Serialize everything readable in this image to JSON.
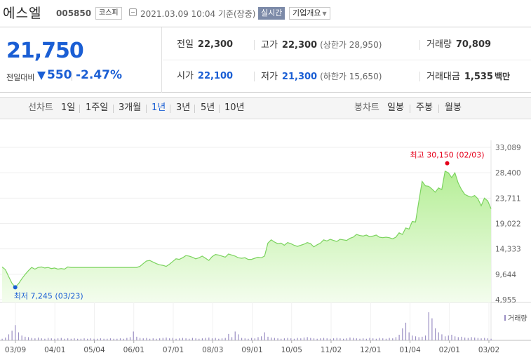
{
  "stock": {
    "name": "에스엘",
    "code": "005850",
    "market": "코스피",
    "datetime": "2021.03.09 10:04 기준(장중)",
    "realtime_label": "실시간",
    "company_label": "기업개요",
    "price": "21,750",
    "change_label": "전일대비",
    "change": "550",
    "change_pct": "-2.47%"
  },
  "quote": {
    "prev_close_label": "전일",
    "prev_close": "22,300",
    "high_label": "고가",
    "high": "22,300",
    "upper_limit": "(상한가 28,950)",
    "volume_label": "거래량",
    "volume": "70,809",
    "open_label": "시가",
    "open": "22,100",
    "low_label": "저가",
    "low": "21,300",
    "lower_limit": "(하한가 15,650)",
    "amount_label": "거래대금",
    "amount": "1,535",
    "amount_unit": "백만"
  },
  "tabs": {
    "line_label": "선차트",
    "line_periods": [
      "1일",
      "1주일",
      "3개월",
      "1년",
      "3년",
      "5년",
      "10년"
    ],
    "active": "1년",
    "candle_label": "봉차트",
    "candle_periods": [
      "일봉",
      "주봉",
      "월봉"
    ]
  },
  "colors": {
    "up": "#e5001b",
    "down": "#1a5ed4",
    "line": "#7bd35e",
    "fill_top": "#b5ee96",
    "fill_bottom": "#f4fdee"
  },
  "chart_data": {
    "type": "area",
    "y_ticks": [
      "33,089",
      "28,400",
      "23,711",
      "19,022",
      "14,333",
      "9,644",
      "4,955"
    ],
    "ylim": [
      4955,
      33089
    ],
    "x_ticks": [
      "03/09",
      "04/01",
      "05/04",
      "06/01",
      "07/01",
      "08/03",
      "09/01",
      "10/05",
      "11/02",
      "12/01",
      "01/04",
      "02/01",
      "03/02"
    ],
    "high_label": "최고 30,150 (02/03)",
    "high_value": 30150,
    "low_label": "최저 7,245 (03/23)",
    "low_value": 7245,
    "volume_label": "거래량",
    "prices": [
      11000,
      10500,
      9200,
      8000,
      7245,
      7900,
      8800,
      9600,
      10300,
      10900,
      10600,
      10900,
      11000,
      10800,
      10900,
      10700,
      10800,
      10600,
      10700,
      10600,
      11000,
      10900,
      10900,
      10900,
      10900,
      10900,
      10900,
      10900,
      10900,
      10900,
      10900,
      10900,
      10900,
      10900,
      10900,
      10900,
      10900,
      10900,
      10900,
      10900,
      10900,
      10900,
      11100,
      11600,
      12100,
      12200,
      11900,
      11600,
      11400,
      11300,
      11100,
      11500,
      12000,
      12500,
      12400,
      12700,
      13100,
      13000,
      12800,
      12500,
      12700,
      13000,
      12600,
      12200,
      12900,
      13300,
      13200,
      13000,
      12800,
      13400,
      13200,
      13000,
      12700,
      12600,
      12700,
      12400,
      12400,
      12600,
      12800,
      12700,
      13000,
      15400,
      16000,
      15600,
      15300,
      15400,
      15000,
      15500,
      15300,
      15000,
      14800,
      15000,
      15200,
      15500,
      15300,
      14700,
      15100,
      15400,
      16000,
      15800,
      16100,
      15900,
      15700,
      16100,
      16000,
      15900,
      16300,
      16500,
      17000,
      16800,
      16700,
      16900,
      16600,
      16700,
      16900,
      16500,
      16400,
      16500,
      16400,
      16200,
      16500,
      17300,
      17000,
      18200,
      18000,
      19400,
      19300,
      23100,
      26800,
      26000,
      25900,
      25400,
      24800,
      25600,
      25300,
      28700,
      28400,
      27500,
      28400,
      26500,
      25300,
      24400,
      24100,
      23900,
      24200,
      23600,
      22300,
      23700,
      23200,
      21750
    ],
    "volumes": [
      4,
      7,
      15,
      24,
      38,
      20,
      12,
      9,
      8,
      6,
      5,
      7,
      5,
      4,
      6,
      5,
      4,
      5,
      6,
      4,
      5,
      4,
      5,
      4,
      4,
      5,
      4,
      5,
      4,
      4,
      5,
      4,
      4,
      5,
      4,
      4,
      5,
      4,
      6,
      8,
      22,
      9,
      6,
      5,
      6,
      4,
      5,
      4,
      5,
      6,
      7,
      5,
      6,
      4,
      5,
      6,
      5,
      4,
      6,
      5,
      4,
      5,
      6,
      7,
      5,
      6,
      4,
      5,
      6,
      16,
      8,
      22,
      15,
      6,
      5,
      4,
      6,
      5,
      8,
      10,
      20,
      9,
      7,
      6,
      5,
      4,
      5,
      6,
      5,
      4,
      6,
      5,
      7,
      8,
      6,
      5,
      4,
      5,
      6,
      5,
      4,
      5,
      6,
      5,
      4,
      5,
      7,
      6,
      5,
      4,
      5,
      4,
      6,
      5,
      4,
      6,
      5,
      4,
      6,
      5,
      8,
      14,
      30,
      44,
      20,
      12,
      10,
      8,
      9,
      12,
      70,
      55,
      30,
      20,
      15,
      10,
      12,
      14,
      10,
      8,
      9,
      7,
      6,
      8,
      7,
      6,
      5,
      6,
      5,
      4
    ]
  }
}
